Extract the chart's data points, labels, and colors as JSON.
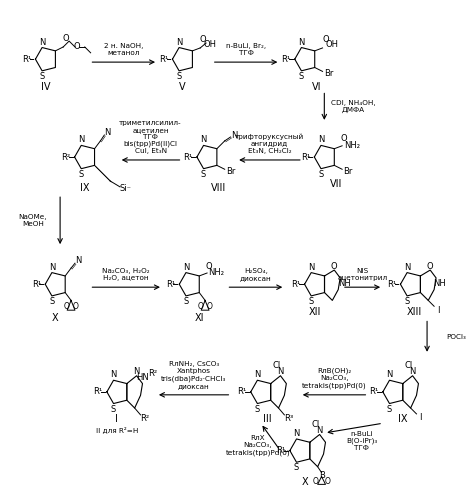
{
  "bg_color": "#ffffff",
  "fig_width": 4.67,
  "fig_height": 5.0,
  "dpi": 100,
  "reagents": {
    "r1": "2 н. NaOH,\nметанол",
    "r2": "n-BuLi, Br₂,\nТГФ",
    "r3": "CDI, NH₄OH,\nДМФА",
    "r4": "трифторуксусный\nангидрид\nEt₃N, CH₂Cl₂",
    "r5": "триметилсилил-\nацетилен\nТГФ\nbis(tpp)Pd(II)Cl\nCuI, Et₃N",
    "r6": "NaOMe,\nMeOH",
    "r7": "Na₂CO₃, H₂O₂\nH₂O, ацетон",
    "r8": "H₂SO₄,\nдиоксан",
    "r9": "NIS\nацетонитрил",
    "r10": "POCl₃",
    "r11": "RᴫB(OH)₂\nNa₂CO₃,\ntetrakis(tpp)Pd(0)",
    "r12": "RᴫNH₂, CsCO₃\nXantphos\ntris(dba)Pd₂·CHCl₃\nдиоксан",
    "r13": "RᴫX\nNa₂CO₃,\ntetrakis(tpp)Pd(0)",
    "r14": "n-BuLi\nB(O-iPr)₃\nТГФ"
  }
}
